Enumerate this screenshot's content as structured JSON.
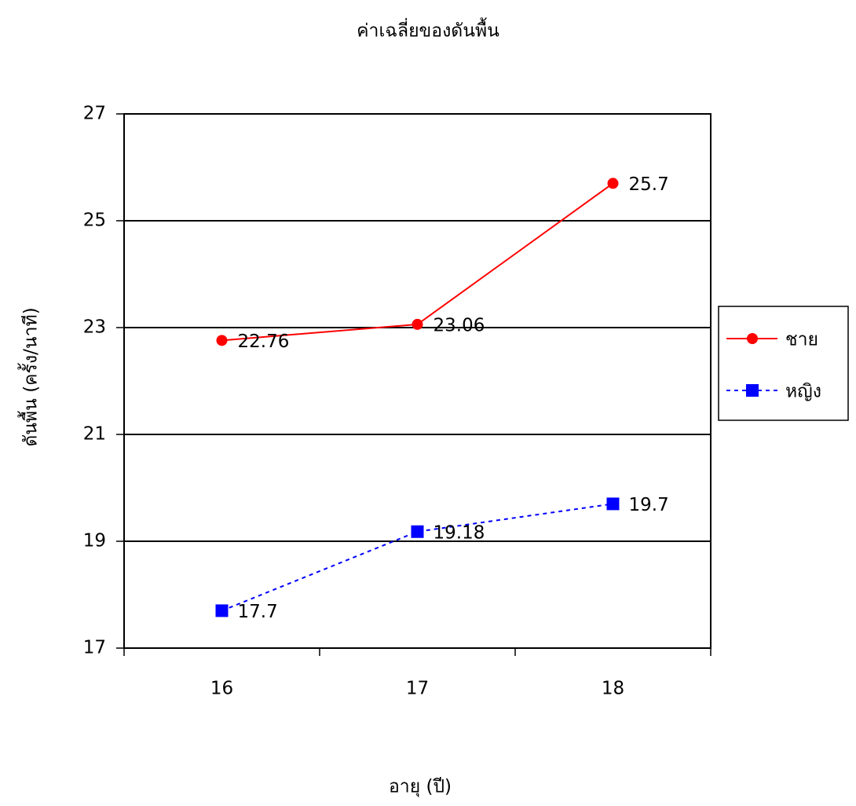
{
  "chart_data": {
    "type": "line",
    "title": "ค่าเฉลี่ยของดันพื้น",
    "x_label": "อายุ (ปี)",
    "y_label": "ดันพื้น (ครั้ง/นาที)",
    "categories": [
      "16",
      "17",
      "18"
    ],
    "series": [
      {
        "name": "ชาย",
        "color": "#ff0000",
        "line_style": "solid",
        "marker": "circle",
        "values": [
          22.76,
          23.06,
          25.7
        ]
      },
      {
        "name": "หญิง",
        "color": "#0000ff",
        "line_style": "dotted",
        "marker": "square",
        "values": [
          17.7,
          19.18,
          19.7
        ]
      }
    ],
    "ylim": [
      17,
      27
    ],
    "yticks": [
      17,
      19,
      21,
      23,
      25,
      27
    ],
    "grid": true,
    "legend": "right"
  }
}
